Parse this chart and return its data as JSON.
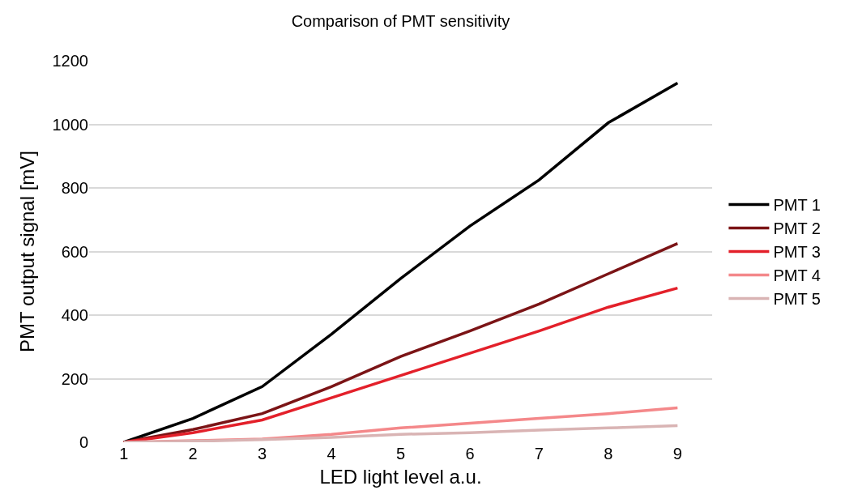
{
  "chart_data": {
    "type": "line",
    "title": "Comparison of PMT sensitivity",
    "xlabel": "LED light level a.u.",
    "ylabel": "PMT output signal [mV]",
    "categories": [
      "1",
      "2",
      "3",
      "4",
      "5",
      "6",
      "7",
      "8",
      "9"
    ],
    "series": [
      {
        "name": "PMT 1",
        "color": "#000000",
        "values": [
          0,
          75,
          175,
          340,
          515,
          680,
          825,
          1005,
          1130
        ]
      },
      {
        "name": "PMT 2",
        "color": "#7b1416",
        "values": [
          0,
          40,
          90,
          175,
          270,
          350,
          435,
          530,
          625
        ]
      },
      {
        "name": "PMT 3",
        "color": "#e3202a",
        "values": [
          0,
          30,
          70,
          140,
          210,
          280,
          350,
          425,
          485
        ]
      },
      {
        "name": "PMT 4",
        "color": "#f4888a",
        "values": [
          0,
          5,
          10,
          25,
          45,
          60,
          75,
          90,
          108
        ]
      },
      {
        "name": "PMT 5",
        "color": "#d9b4b4",
        "values": [
          0,
          3,
          8,
          15,
          25,
          30,
          38,
          45,
          52
        ]
      }
    ],
    "ylim": [
      0,
      1200
    ],
    "yticks": [
      0,
      200,
      400,
      600,
      800,
      1000,
      1200
    ],
    "grid": "y",
    "legend": "right",
    "marker": "none",
    "line_style": "solid"
  }
}
